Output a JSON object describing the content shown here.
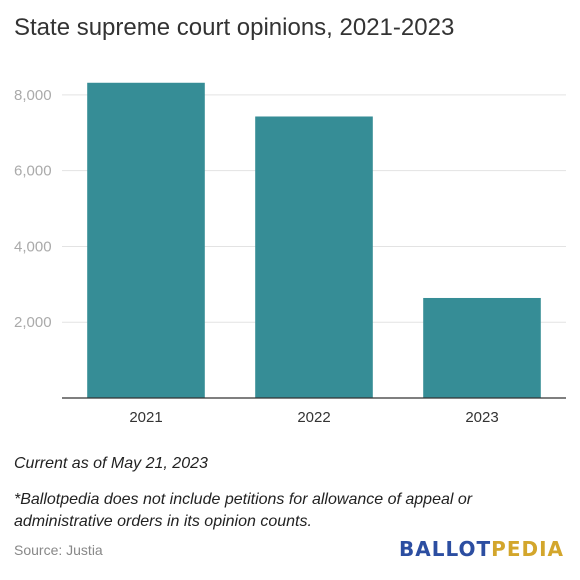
{
  "title": "State supreme court opinions, 2021-2023",
  "notes": {
    "current": "Current as of May 21, 2023",
    "disclaimer": "*Ballotpedia does not include petitions for allowance of appeal or administrative orders in its opinion counts."
  },
  "source": "Source: Justia",
  "logo": {
    "part1": "BALLOT",
    "part2": "PEDIA"
  },
  "colors": {
    "bar": "#368d96",
    "grid": "#e3e3e3",
    "axis": "#333333",
    "tick_text": "#aaaaaa",
    "category_text": "#333333",
    "logo_ballot": "#2c4ea1",
    "logo_pedia": "#d3a62c"
  },
  "chart_data": {
    "type": "bar",
    "title": "State supreme court opinions, 2021-2023",
    "xlabel": "",
    "ylabel": "",
    "categories": [
      "2021",
      "2022",
      "2023"
    ],
    "values": [
      8320,
      7430,
      2640
    ],
    "ylim": [
      0,
      9000
    ],
    "yticks": [
      2000,
      4000,
      6000,
      8000
    ],
    "ytick_labels": [
      "2,000",
      "4,000",
      "6,000",
      "8,000"
    ],
    "grid": true,
    "legend": "none"
  }
}
